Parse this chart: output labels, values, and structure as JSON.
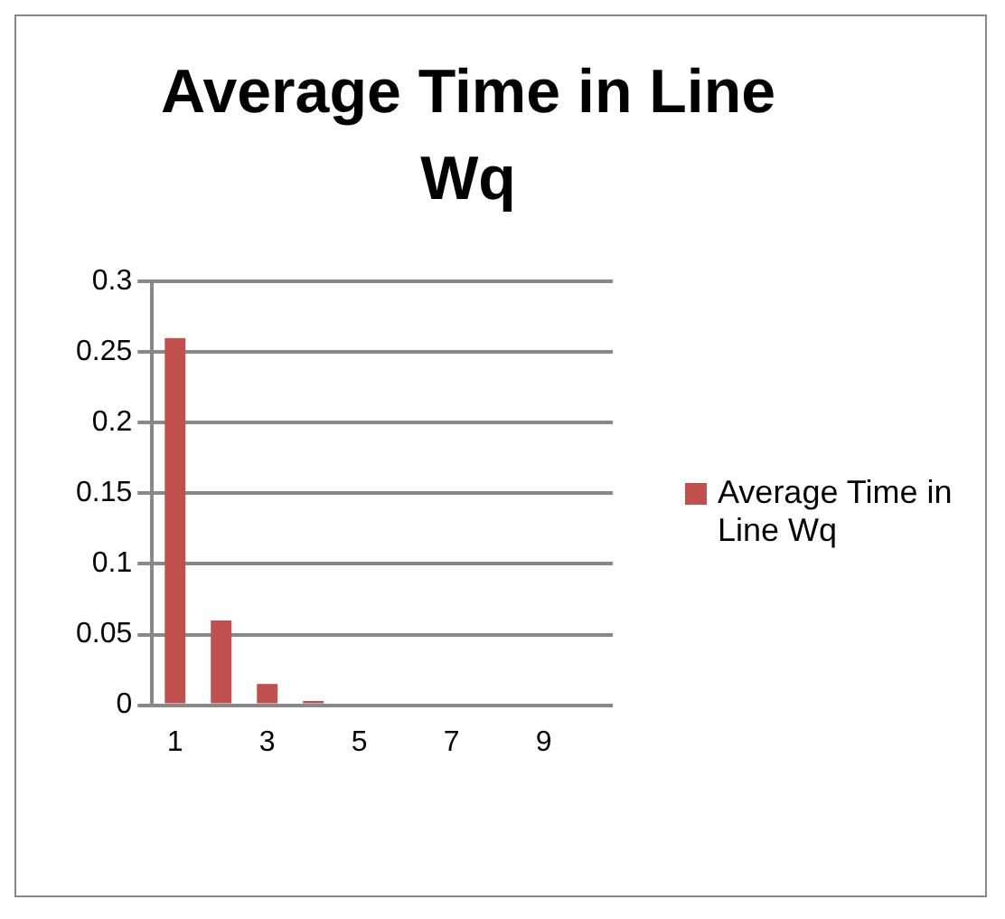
{
  "chart_data": {
    "type": "bar",
    "title": "Average Time in Line Wq",
    "categories": [
      "1",
      null,
      "3",
      null,
      "5",
      null,
      "7",
      null,
      "9",
      null
    ],
    "series": [
      {
        "name": "Average Time in Line Wq",
        "color": "#c0504d",
        "values": [
          0.26,
          0.06,
          0.015,
          0.003,
          0,
          0,
          0,
          0,
          0,
          0
        ]
      }
    ],
    "ylim": [
      0,
      0.3
    ],
    "yticks": [
      0,
      0.05,
      0.1,
      0.15,
      0.2,
      0.25,
      0.3
    ],
    "grid": "y",
    "legend": "right"
  }
}
